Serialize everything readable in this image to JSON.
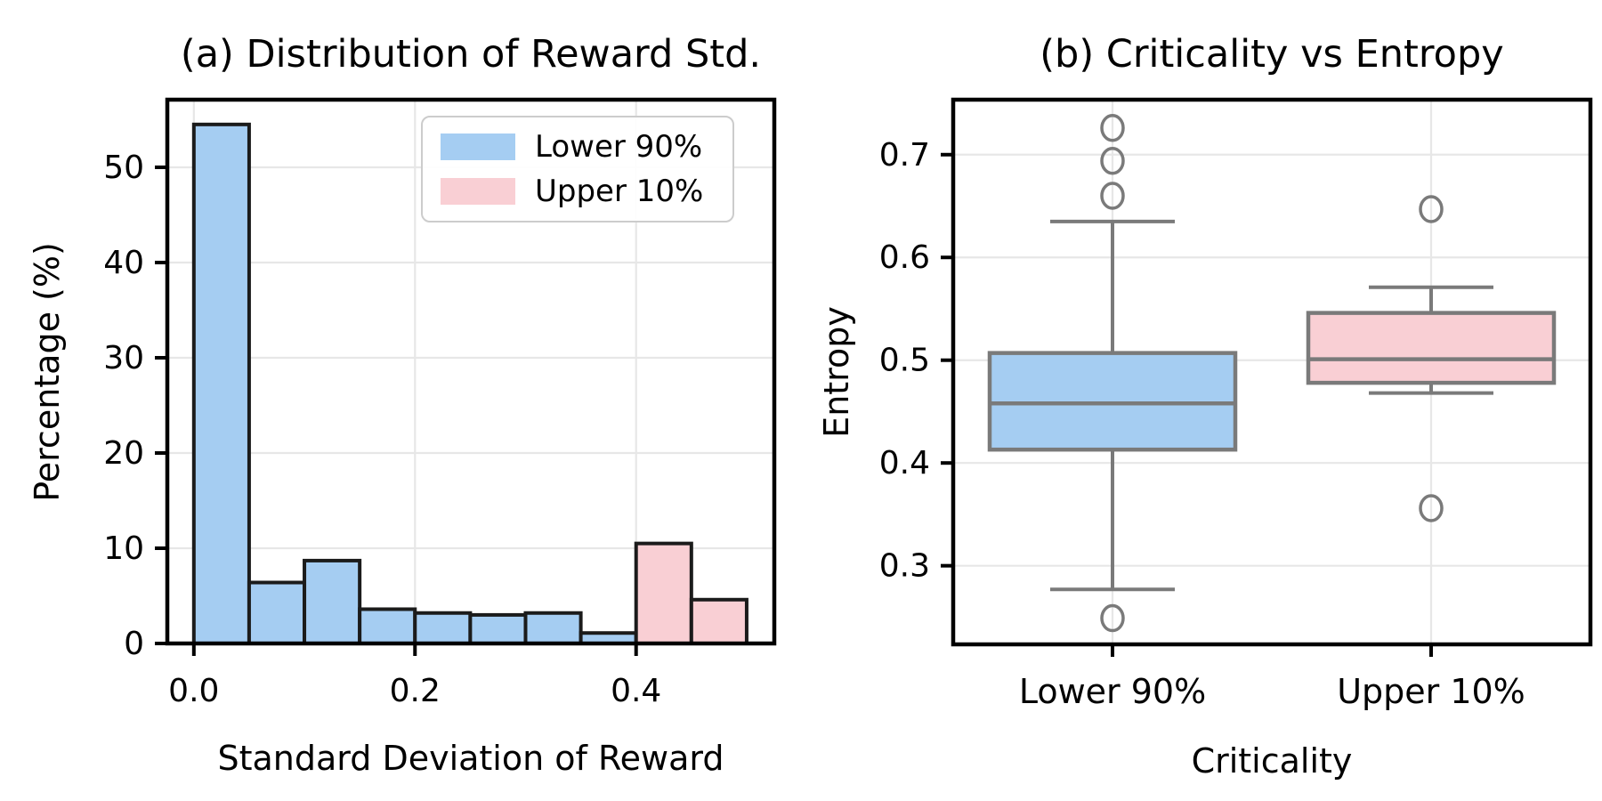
{
  "figure": {
    "background": "#ffffff",
    "accent_blue": "#A5CDF2",
    "accent_pink": "#F9CFD4",
    "bar_edge_color": "#1b1b1b",
    "box_line_color": "#7a7a7a",
    "grid_color": "#e7e7e7",
    "spine_color": "#000000"
  },
  "chart_data": [
    {
      "id": "a",
      "type": "bar",
      "title": "(a) Distribution of Reward Std.",
      "xlabel": "Standard Deviation of Reward",
      "ylabel": "Percentage (%)",
      "xlim": [
        -0.024,
        0.525
      ],
      "ylim": [
        0,
        57.1
      ],
      "xticks": [
        0.0,
        0.2,
        0.4
      ],
      "xtick_labels": [
        "0.0",
        "0.2",
        "0.4"
      ],
      "yticks": [
        0,
        10,
        20,
        30,
        40,
        50
      ],
      "ytick_labels": [
        "0",
        "10",
        "20",
        "30",
        "40",
        "50"
      ],
      "grid": true,
      "bin_width": 0.05,
      "bars": [
        {
          "x0": 0.0,
          "x1": 0.05,
          "value": 54.5,
          "series": "Lower 90%",
          "color": "#A5CDF2"
        },
        {
          "x0": 0.05,
          "x1": 0.1,
          "value": 6.4,
          "series": "Lower 90%",
          "color": "#A5CDF2"
        },
        {
          "x0": 0.1,
          "x1": 0.15,
          "value": 8.7,
          "series": "Lower 90%",
          "color": "#A5CDF2"
        },
        {
          "x0": 0.15,
          "x1": 0.2,
          "value": 3.6,
          "series": "Lower 90%",
          "color": "#A5CDF2"
        },
        {
          "x0": 0.2,
          "x1": 0.25,
          "value": 3.2,
          "series": "Lower 90%",
          "color": "#A5CDF2"
        },
        {
          "x0": 0.25,
          "x1": 0.3,
          "value": 3.0,
          "series": "Lower 90%",
          "color": "#A5CDF2"
        },
        {
          "x0": 0.3,
          "x1": 0.35,
          "value": 3.2,
          "series": "Lower 90%",
          "color": "#A5CDF2"
        },
        {
          "x0": 0.35,
          "x1": 0.4,
          "value": 1.1,
          "series": "Lower 90%",
          "color": "#A5CDF2"
        },
        {
          "x0": 0.4,
          "x1": 0.45,
          "value": 10.5,
          "series": "Upper 10%",
          "color": "#F9CFD4"
        },
        {
          "x0": 0.45,
          "x1": 0.5,
          "value": 4.6,
          "series": "Upper 10%",
          "color": "#F9CFD4"
        }
      ],
      "legend": [
        {
          "label": "Lower 90%",
          "color": "#A5CDF2"
        },
        {
          "label": "Upper 10%",
          "color": "#F9CFD4"
        }
      ],
      "legend_position": "upper right"
    },
    {
      "id": "b",
      "type": "box",
      "title": "(b) Criticality vs Entropy",
      "xlabel": "Criticality",
      "ylabel": "Entropy",
      "ylim": [
        0.2235,
        0.7535
      ],
      "yticks": [
        0.3,
        0.4,
        0.5,
        0.6,
        0.7
      ],
      "ytick_labels": [
        "0.3",
        "0.4",
        "0.5",
        "0.6",
        "0.7"
      ],
      "grid": true,
      "categories": [
        "Lower 90%",
        "Upper 10%"
      ],
      "boxes": [
        {
          "label": "Lower 90%",
          "q1": 0.413,
          "median": 0.458,
          "q3": 0.507,
          "whisker_low": 0.277,
          "whisker_high": 0.635,
          "outliers": [
            0.249,
            0.66,
            0.694,
            0.726
          ],
          "color": "#A5CDF2"
        },
        {
          "label": "Upper 10%",
          "q1": 0.478,
          "median": 0.501,
          "q3": 0.546,
          "whisker_low": 0.468,
          "whisker_high": 0.571,
          "outliers": [
            0.356,
            0.647
          ],
          "color": "#F9CFD4"
        }
      ]
    }
  ]
}
